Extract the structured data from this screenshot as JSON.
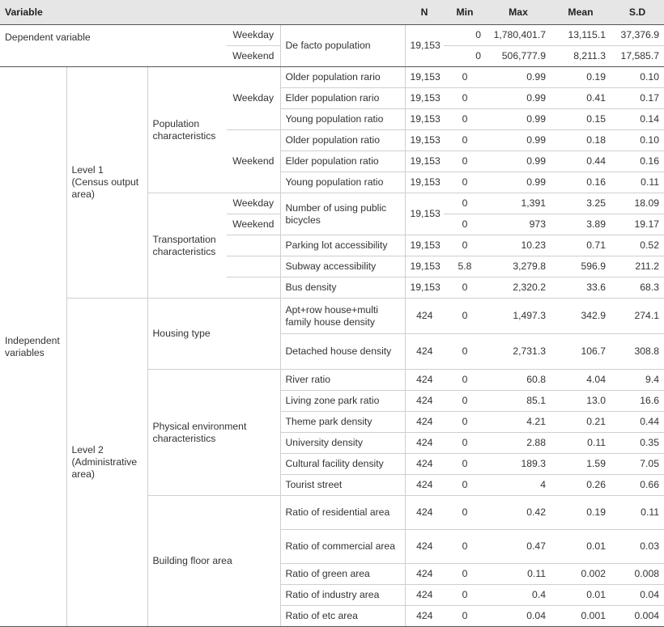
{
  "headers": {
    "variable": "Variable",
    "n": "N",
    "min": "Min",
    "max": "Max",
    "mean": "Mean",
    "sd": "S.D"
  },
  "dependent": {
    "label": "Dependent variable",
    "measure": "De facto population",
    "n": "19,153",
    "rows": [
      {
        "period": "Weekday",
        "min": "0",
        "max": "1,780,401.7",
        "mean": "13,115.1",
        "sd": "37,376.9"
      },
      {
        "period": "Weekend",
        "min": "0",
        "max": "506,777.9",
        "mean": "8,211.3",
        "sd": "17,585.7"
      }
    ]
  },
  "independent": {
    "label": "Independent variables",
    "level1": {
      "label": "Level 1 (Census output area)",
      "population": {
        "label": "Population characteristics",
        "weekday": "Weekday",
        "weekend": "Weekend",
        "weekday_rows": [
          {
            "name": "Older population rario",
            "n": "19,153",
            "min": "0",
            "max": "0.99",
            "mean": "0.19",
            "sd": "0.10"
          },
          {
            "name": "Elder population rario",
            "n": "19,153",
            "min": "0",
            "max": "0.99",
            "mean": "0.41",
            "sd": "0.17"
          },
          {
            "name": "Young population ratio",
            "n": "19,153",
            "min": "0",
            "max": "0.99",
            "mean": "0.15",
            "sd": "0.14"
          }
        ],
        "weekend_rows": [
          {
            "name": "Older population ratio",
            "n": "19,153",
            "min": "0",
            "max": "0.99",
            "mean": "0.18",
            "sd": "0.10"
          },
          {
            "name": "Elder population ratio",
            "n": "19,153",
            "min": "0",
            "max": "0.99",
            "mean": "0.44",
            "sd": "0.16"
          },
          {
            "name": "Young population ratio",
            "n": "19,153",
            "min": "0",
            "max": "0.99",
            "mean": "0.16",
            "sd": "0.11"
          }
        ]
      },
      "transport": {
        "label": "Transportation characteristics",
        "bike": {
          "name": "Number of using public bicycles",
          "n": "19,153",
          "weekday": {
            "period": "Weekday",
            "min": "0",
            "max": "1,391",
            "mean": "3.25",
            "sd": "18.09"
          },
          "weekend": {
            "period": "Weekend",
            "min": "0",
            "max": "973",
            "mean": "3.89",
            "sd": "19.17"
          }
        },
        "rows": [
          {
            "name": "Parking lot accessibility",
            "n": "19,153",
            "min": "0",
            "max": "10.23",
            "mean": "0.71",
            "sd": "0.52"
          },
          {
            "name": "Subway accessibility",
            "n": "19,153",
            "min": "5.8",
            "max": "3,279.8",
            "mean": "596.9",
            "sd": "211.2"
          },
          {
            "name": "Bus density",
            "n": "19,153",
            "min": "0",
            "max": "2,320.2",
            "mean": "33.6",
            "sd": "68.3"
          }
        ]
      }
    },
    "level2": {
      "label": "Level 2 (Administrative area)",
      "housing": {
        "label": "Housing type",
        "rows": [
          {
            "name": "Apt+row house+multi family house density",
            "n": "424",
            "min": "0",
            "max": "1,497.3",
            "mean": "342.9",
            "sd": "274.1"
          },
          {
            "name": "Detached house density",
            "n": "424",
            "min": "0",
            "max": "2,731.3",
            "mean": "106.7",
            "sd": "308.8"
          }
        ]
      },
      "physical": {
        "label": "Physical environment characteristics",
        "rows": [
          {
            "name": "River ratio",
            "n": "424",
            "min": "0",
            "max": "60.8",
            "mean": "4.04",
            "sd": "9.4"
          },
          {
            "name": "Living zone park ratio",
            "n": "424",
            "min": "0",
            "max": "85.1",
            "mean": "13.0",
            "sd": "16.6"
          },
          {
            "name": "Theme park density",
            "n": "424",
            "min": "0",
            "max": "4.21",
            "mean": "0.21",
            "sd": "0.44"
          },
          {
            "name": "University density",
            "n": "424",
            "min": "0",
            "max": "2.88",
            "mean": "0.11",
            "sd": "0.35"
          },
          {
            "name": "Cultural facility density",
            "n": "424",
            "min": "0",
            "max": "189.3",
            "mean": "1.59",
            "sd": "7.05"
          },
          {
            "name": "Tourist street",
            "n": "424",
            "min": "0",
            "max": "4",
            "mean": "0.26",
            "sd": "0.66"
          }
        ]
      },
      "building": {
        "label": "Building floor area",
        "rows": [
          {
            "name": "Ratio of residential area",
            "n": "424",
            "min": "0",
            "max": "0.42",
            "mean": "0.19",
            "sd": "0.11"
          },
          {
            "name": "Ratio of commercial area",
            "n": "424",
            "min": "0",
            "max": "0.47",
            "mean": "0.01",
            "sd": "0.03"
          },
          {
            "name": "Ratio of green area",
            "n": "424",
            "min": "0",
            "max": "0.11",
            "mean": "0.002",
            "sd": "0.008"
          },
          {
            "name": "Ratio of industry area",
            "n": "424",
            "min": "0",
            "max": "0.4",
            "mean": "0.01",
            "sd": "0.04"
          },
          {
            "name": "Ratio of etc area",
            "n": "424",
            "min": "0",
            "max": "0.04",
            "mean": "0.001",
            "sd": "0.004"
          }
        ]
      }
    }
  }
}
